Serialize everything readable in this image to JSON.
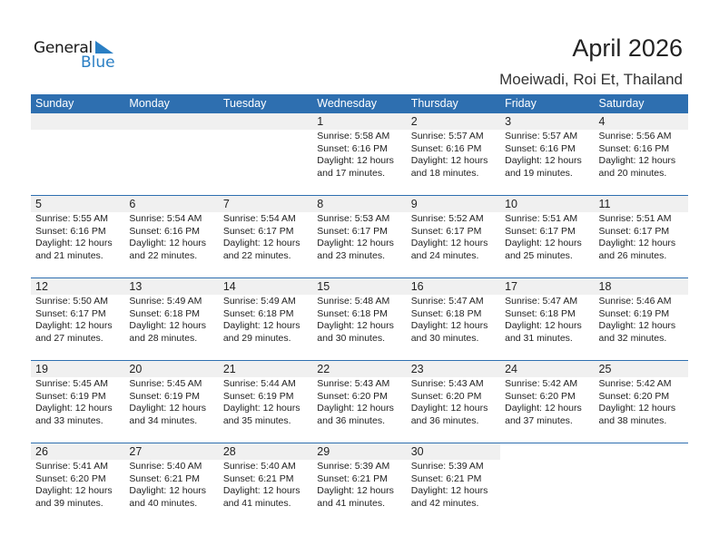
{
  "logo": {
    "general": "General",
    "blue": "Blue"
  },
  "title": "April 2026",
  "location": "Moeiwadi, Roi Et, Thailand",
  "days": [
    "Sunday",
    "Monday",
    "Tuesday",
    "Wednesday",
    "Thursday",
    "Friday",
    "Saturday"
  ],
  "leading_blanks": 3,
  "colors": {
    "header": "#2e6fb0",
    "date_bar": "#f0f0f0"
  },
  "entries": [
    {
      "day": "1",
      "sunrise": "Sunrise: 5:58 AM",
      "sunset": "Sunset: 6:16 PM",
      "daylight": "Daylight: 12 hours",
      "minutes": "and 17 minutes."
    },
    {
      "day": "2",
      "sunrise": "Sunrise: 5:57 AM",
      "sunset": "Sunset: 6:16 PM",
      "daylight": "Daylight: 12 hours",
      "minutes": "and 18 minutes."
    },
    {
      "day": "3",
      "sunrise": "Sunrise: 5:57 AM",
      "sunset": "Sunset: 6:16 PM",
      "daylight": "Daylight: 12 hours",
      "minutes": "and 19 minutes."
    },
    {
      "day": "4",
      "sunrise": "Sunrise: 5:56 AM",
      "sunset": "Sunset: 6:16 PM",
      "daylight": "Daylight: 12 hours",
      "minutes": "and 20 minutes."
    },
    {
      "day": "5",
      "sunrise": "Sunrise: 5:55 AM",
      "sunset": "Sunset: 6:16 PM",
      "daylight": "Daylight: 12 hours",
      "minutes": "and 21 minutes."
    },
    {
      "day": "6",
      "sunrise": "Sunrise: 5:54 AM",
      "sunset": "Sunset: 6:16 PM",
      "daylight": "Daylight: 12 hours",
      "minutes": "and 22 minutes."
    },
    {
      "day": "7",
      "sunrise": "Sunrise: 5:54 AM",
      "sunset": "Sunset: 6:17 PM",
      "daylight": "Daylight: 12 hours",
      "minutes": "and 22 minutes."
    },
    {
      "day": "8",
      "sunrise": "Sunrise: 5:53 AM",
      "sunset": "Sunset: 6:17 PM",
      "daylight": "Daylight: 12 hours",
      "minutes": "and 23 minutes."
    },
    {
      "day": "9",
      "sunrise": "Sunrise: 5:52 AM",
      "sunset": "Sunset: 6:17 PM",
      "daylight": "Daylight: 12 hours",
      "minutes": "and 24 minutes."
    },
    {
      "day": "10",
      "sunrise": "Sunrise: 5:51 AM",
      "sunset": "Sunset: 6:17 PM",
      "daylight": "Daylight: 12 hours",
      "minutes": "and 25 minutes."
    },
    {
      "day": "11",
      "sunrise": "Sunrise: 5:51 AM",
      "sunset": "Sunset: 6:17 PM",
      "daylight": "Daylight: 12 hours",
      "minutes": "and 26 minutes."
    },
    {
      "day": "12",
      "sunrise": "Sunrise: 5:50 AM",
      "sunset": "Sunset: 6:17 PM",
      "daylight": "Daylight: 12 hours",
      "minutes": "and 27 minutes."
    },
    {
      "day": "13",
      "sunrise": "Sunrise: 5:49 AM",
      "sunset": "Sunset: 6:18 PM",
      "daylight": "Daylight: 12 hours",
      "minutes": "and 28 minutes."
    },
    {
      "day": "14",
      "sunrise": "Sunrise: 5:49 AM",
      "sunset": "Sunset: 6:18 PM",
      "daylight": "Daylight: 12 hours",
      "minutes": "and 29 minutes."
    },
    {
      "day": "15",
      "sunrise": "Sunrise: 5:48 AM",
      "sunset": "Sunset: 6:18 PM",
      "daylight": "Daylight: 12 hours",
      "minutes": "and 30 minutes."
    },
    {
      "day": "16",
      "sunrise": "Sunrise: 5:47 AM",
      "sunset": "Sunset: 6:18 PM",
      "daylight": "Daylight: 12 hours",
      "minutes": "and 30 minutes."
    },
    {
      "day": "17",
      "sunrise": "Sunrise: 5:47 AM",
      "sunset": "Sunset: 6:18 PM",
      "daylight": "Daylight: 12 hours",
      "minutes": "and 31 minutes."
    },
    {
      "day": "18",
      "sunrise": "Sunrise: 5:46 AM",
      "sunset": "Sunset: 6:19 PM",
      "daylight": "Daylight: 12 hours",
      "minutes": "and 32 minutes."
    },
    {
      "day": "19",
      "sunrise": "Sunrise: 5:45 AM",
      "sunset": "Sunset: 6:19 PM",
      "daylight": "Daylight: 12 hours",
      "minutes": "and 33 minutes."
    },
    {
      "day": "20",
      "sunrise": "Sunrise: 5:45 AM",
      "sunset": "Sunset: 6:19 PM",
      "daylight": "Daylight: 12 hours",
      "minutes": "and 34 minutes."
    },
    {
      "day": "21",
      "sunrise": "Sunrise: 5:44 AM",
      "sunset": "Sunset: 6:19 PM",
      "daylight": "Daylight: 12 hours",
      "minutes": "and 35 minutes."
    },
    {
      "day": "22",
      "sunrise": "Sunrise: 5:43 AM",
      "sunset": "Sunset: 6:20 PM",
      "daylight": "Daylight: 12 hours",
      "minutes": "and 36 minutes."
    },
    {
      "day": "23",
      "sunrise": "Sunrise: 5:43 AM",
      "sunset": "Sunset: 6:20 PM",
      "daylight": "Daylight: 12 hours",
      "minutes": "and 36 minutes."
    },
    {
      "day": "24",
      "sunrise": "Sunrise: 5:42 AM",
      "sunset": "Sunset: 6:20 PM",
      "daylight": "Daylight: 12 hours",
      "minutes": "and 37 minutes."
    },
    {
      "day": "25",
      "sunrise": "Sunrise: 5:42 AM",
      "sunset": "Sunset: 6:20 PM",
      "daylight": "Daylight: 12 hours",
      "minutes": "and 38 minutes."
    },
    {
      "day": "26",
      "sunrise": "Sunrise: 5:41 AM",
      "sunset": "Sunset: 6:20 PM",
      "daylight": "Daylight: 12 hours",
      "minutes": "and 39 minutes."
    },
    {
      "day": "27",
      "sunrise": "Sunrise: 5:40 AM",
      "sunset": "Sunset: 6:21 PM",
      "daylight": "Daylight: 12 hours",
      "minutes": "and 40 minutes."
    },
    {
      "day": "28",
      "sunrise": "Sunrise: 5:40 AM",
      "sunset": "Sunset: 6:21 PM",
      "daylight": "Daylight: 12 hours",
      "minutes": "and 41 minutes."
    },
    {
      "day": "29",
      "sunrise": "Sunrise: 5:39 AM",
      "sunset": "Sunset: 6:21 PM",
      "daylight": "Daylight: 12 hours",
      "minutes": "and 41 minutes."
    },
    {
      "day": "30",
      "sunrise": "Sunrise: 5:39 AM",
      "sunset": "Sunset: 6:21 PM",
      "daylight": "Daylight: 12 hours",
      "minutes": "and 42 minutes."
    }
  ]
}
